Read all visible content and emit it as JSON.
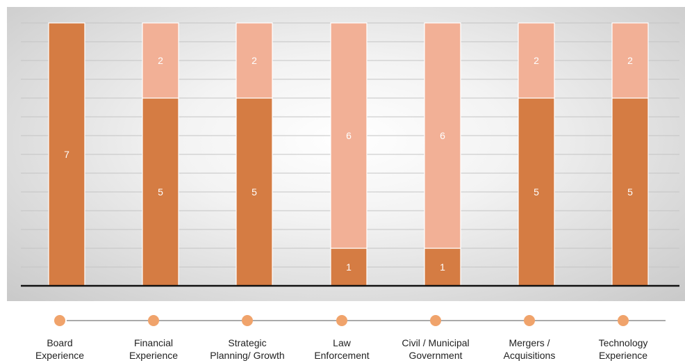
{
  "chart_data": {
    "type": "bar",
    "stacked": true,
    "categories": [
      "Board\nExperience",
      "Financial\nExperience",
      "Strategic\nPlanning/ Growth",
      "Law\nEnforcement",
      "Civil / Municipal\nGovernment",
      "Mergers /\nAcquisitions",
      "Technology\nExperience"
    ],
    "series": [
      {
        "values": [
          7,
          5,
          5,
          1,
          1,
          5,
          5
        ],
        "color": "#d57c43"
      },
      {
        "values": [
          0,
          2,
          2,
          6,
          6,
          2,
          2
        ],
        "color": "#f2b096"
      }
    ],
    "ylim": [
      0,
      7
    ],
    "grid": true,
    "timeline_dot_color": "#f0a36b"
  }
}
